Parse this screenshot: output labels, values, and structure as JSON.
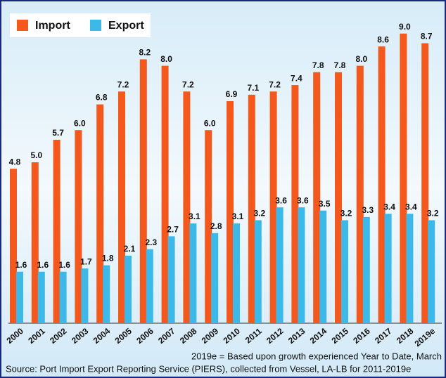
{
  "chart_data": {
    "type": "bar",
    "categories": [
      "2000",
      "2001",
      "2002",
      "2003",
      "2004",
      "2005",
      "2006",
      "2007",
      "2008",
      "2009",
      "2010",
      "2011",
      "2012",
      "2013",
      "2014",
      "2015",
      "2016",
      "2017",
      "2018",
      "2019e"
    ],
    "series": [
      {
        "name": "Import",
        "color": "#f4581c",
        "values": [
          4.8,
          5.0,
          5.7,
          6.0,
          6.8,
          7.2,
          8.2,
          8.0,
          7.2,
          6.0,
          6.9,
          7.1,
          7.2,
          7.4,
          7.8,
          7.8,
          8.0,
          8.6,
          9.0,
          8.7
        ],
        "value_labels": [
          "4.8",
          "5.0",
          "5.7",
          "6.0",
          "6.8",
          "7.2",
          "8.2",
          "8.0",
          "7.2",
          "6.0",
          "6.9",
          "7.1",
          "7.2",
          "7.4",
          "7.8",
          "7.8",
          "8.0",
          "8.6",
          "9.0",
          "8.7"
        ]
      },
      {
        "name": "Export",
        "color": "#3cb9e9",
        "values": [
          1.6,
          1.6,
          1.6,
          1.7,
          1.8,
          2.1,
          2.3,
          2.7,
          3.1,
          2.8,
          3.1,
          3.2,
          3.6,
          3.6,
          3.5,
          3.2,
          3.3,
          3.4,
          3.4,
          3.2
        ],
        "value_labels": [
          "1.6",
          "1.6",
          "1.6",
          "1.7",
          "1.8",
          "2.1",
          "2.3",
          "2.7",
          "3.1",
          "2.8",
          "3.1",
          "3.2",
          "3.6",
          "3.6",
          "3.5",
          "3.2",
          "3.3",
          "3.4",
          "3.4",
          "3.2"
        ]
      }
    ],
    "ylim": [
      0,
      10
    ],
    "legend": "top-left",
    "annotations": [
      "2019e = Based upon growth experienced Year to Date, March",
      "Source:  Port Import Export Reporting Service (PIERS), collected from Vessel, LA-LB for 2011-2019e"
    ]
  }
}
